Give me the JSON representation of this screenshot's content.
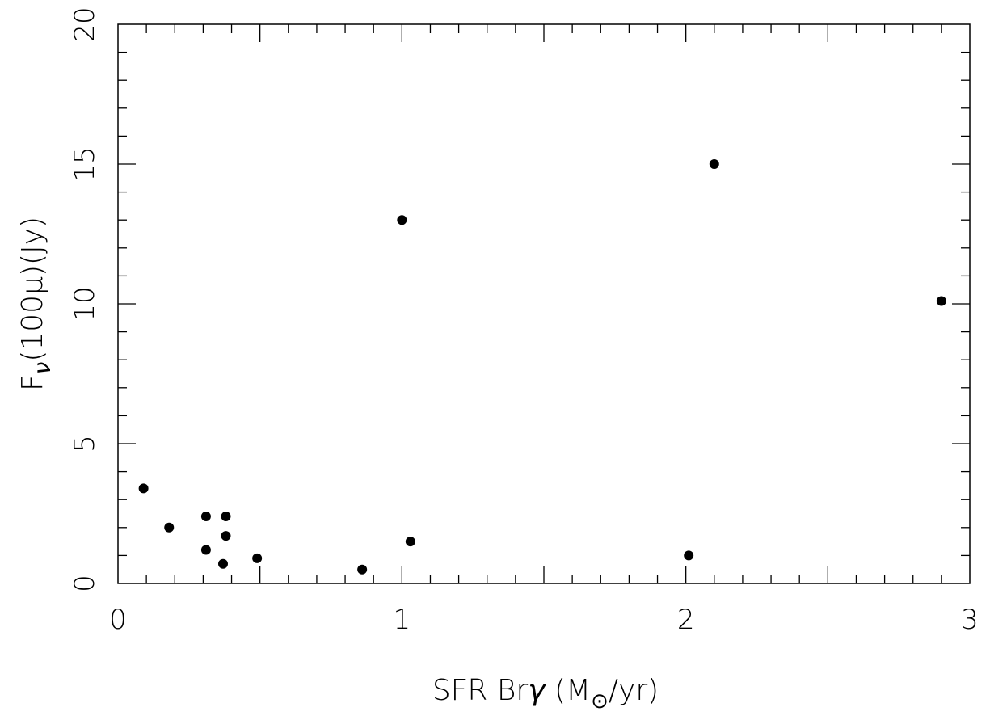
{
  "chart_data": {
    "type": "scatter",
    "title": "",
    "xlabel": {
      "main": "SFR Br",
      "greek": "γ",
      "open": " (M",
      "sub": "⊙",
      "close": "/yr)"
    },
    "ylabel": {
      "main": "F",
      "sub": "ν",
      "rest": "(100μ)(Jy)"
    },
    "xlim": [
      0,
      3
    ],
    "ylim": [
      0,
      20
    ],
    "x_ticks": [
      "0",
      "1",
      "2",
      "3"
    ],
    "y_ticks": [
      "0",
      "5",
      "10",
      "15",
      "20"
    ],
    "grid": false,
    "point_color": "#000000",
    "points": [
      {
        "x": 0.09,
        "y": 3.4
      },
      {
        "x": 0.18,
        "y": 2.0
      },
      {
        "x": 0.31,
        "y": 2.4
      },
      {
        "x": 0.38,
        "y": 2.4
      },
      {
        "x": 0.38,
        "y": 1.7
      },
      {
        "x": 0.31,
        "y": 1.2
      },
      {
        "x": 0.37,
        "y": 0.7
      },
      {
        "x": 0.49,
        "y": 0.9
      },
      {
        "x": 0.86,
        "y": 0.5
      },
      {
        "x": 1.0,
        "y": 13.0
      },
      {
        "x": 1.03,
        "y": 1.5
      },
      {
        "x": 2.01,
        "y": 1.0
      },
      {
        "x": 2.1,
        "y": 15.0
      },
      {
        "x": 2.9,
        "y": 10.1
      }
    ]
  }
}
